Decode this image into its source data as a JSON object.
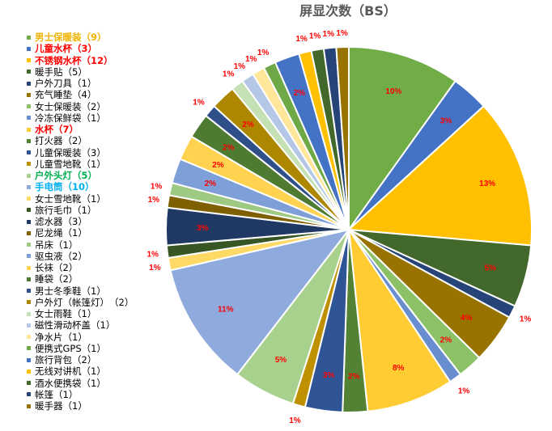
{
  "chart_data": {
    "type": "pie",
    "title": "屏显次数（BS）",
    "categories": [
      "男士保暖装",
      "儿童水杯",
      "不锈钢水杯",
      "暖手贴",
      "户外刀具",
      "充气睡垫",
      "女士保暖装",
      "冷冻保鲜袋",
      "水杯",
      "打火器",
      "儿童保暖装",
      "儿童雪地靴",
      "户外头灯",
      "手电筒",
      "女士雪地靴",
      "旅行毛巾",
      "滤水器",
      "尼龙绳",
      "吊床",
      "驱虫液",
      "长袜",
      "睡袋",
      "男士冬季鞋",
      "户外灯（帐篷灯）",
      "女士雨鞋",
      "磁性滑动杯盖",
      "净水片",
      "便携式GPS",
      "旅行背包",
      "无线对讲机",
      "酒水便携袋",
      "帐篷",
      "暖手器"
    ],
    "values": [
      9,
      3,
      12,
      5,
      1,
      4,
      2,
      1,
      7,
      2,
      3,
      1,
      5,
      10,
      1,
      1,
      3,
      1,
      1,
      2,
      2,
      2,
      1,
      2,
      1,
      1,
      1,
      1,
      2,
      1,
      1,
      1,
      1
    ],
    "data_labels": [
      "10%",
      "3%",
      "13%",
      "5%",
      "1%",
      "4%",
      "2%",
      "1%",
      "8%",
      "2%",
      "3%",
      "1%",
      "5%",
      "11%",
      "1%",
      "1%",
      "3%",
      "1%",
      "1%",
      "2%",
      "2%",
      "2%",
      "1%",
      "2%",
      "1%",
      "1%",
      "1%",
      "1%",
      "2%",
      "1%",
      "1%",
      "1%",
      "1%"
    ],
    "legend_labels": [
      "男士保暖装（9）",
      "儿童水杯（3）",
      "不锈钢水杯（12）",
      "暖手贴（5）",
      "户外刀具（1）",
      "充气睡垫（4）",
      "女士保暖装（2）",
      "冷冻保鲜袋（1）",
      "水杯（7）",
      "打火器（2）",
      "儿童保暖装（3）",
      "儿童雪地靴（1）",
      "户外头灯（5）",
      "手电筒（10）",
      "女士雪地靴（1）",
      "旅行毛巾（1）",
      "滤水器（3）",
      "尼龙绳（1）",
      "吊床（1）",
      "驱虫液（2）",
      "长袜（2）",
      "睡袋（2）",
      "男士冬季鞋（1）",
      "户外灯（帐篷灯）　（2）",
      "女士雨鞋（1）",
      "磁性滑动杯盖（1）",
      "净水片（1）",
      "便携式GPS（1）",
      "旅行背包（2）",
      "无线对讲机（1）",
      "酒水便携袋（1）",
      "帐篷（1）",
      "暖手器（1）"
    ],
    "legend_text_colors": [
      "#F0B400",
      "#FF0000",
      "#FF0000",
      "#000000",
      "#000000",
      "#000000",
      "#000000",
      "#000000",
      "#FF0000",
      "#000000",
      "#000000",
      "#000000",
      "#00B050",
      "#00B0F0",
      "#000000",
      "#000000",
      "#000000",
      "#000000",
      "#000000",
      "#000000",
      "#000000",
      "#000000",
      "#000000",
      "#000000",
      "#000000",
      "#000000",
      "#000000",
      "#000000",
      "#000000",
      "#000000",
      "#000000",
      "#000000",
      "#000000"
    ],
    "colors": [
      "#70AD47",
      "#4472C4",
      "#FFC000",
      "#43682B",
      "#264478",
      "#997300",
      "#8CC168",
      "#698ED0",
      "#FFCD33",
      "#548235",
      "#2F5597",
      "#BF9000",
      "#A9D18E",
      "#8FAADC",
      "#FFD966",
      "#375623",
      "#203864",
      "#7F6000",
      "#9DC983",
      "#7F9FD8",
      "#FFD34F",
      "#4E7A32",
      "#2E4F8A",
      "#AD8700",
      "#C5E0B4",
      "#B4C7E7",
      "#FFE699",
      "#6FA846",
      "#4472C4",
      "#FFC000",
      "#43682B",
      "#264478",
      "#997300"
    ],
    "data_label_color": "#FF0000",
    "legend_position": "left"
  }
}
